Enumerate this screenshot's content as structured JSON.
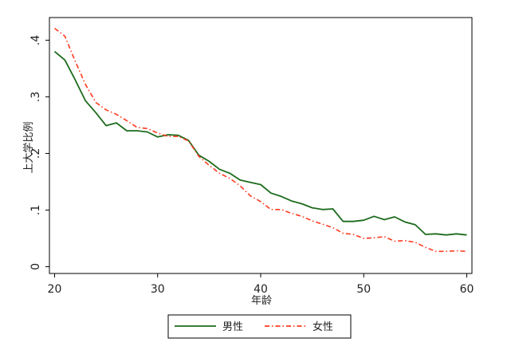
{
  "chart_data": {
    "type": "line",
    "title": "",
    "xlabel": "年龄",
    "ylabel": "上大学比例",
    "xlim": [
      19.5,
      60.5
    ],
    "ylim": [
      -0.012,
      0.44
    ],
    "x_ticks": [
      20,
      30,
      40,
      50,
      60
    ],
    "x_tick_labels": [
      "20",
      "30",
      "40",
      "50",
      "60"
    ],
    "y_ticks": [
      0,
      0.1,
      0.2,
      0.3,
      0.4
    ],
    "y_tick_labels": [
      "0",
      ".1",
      ".2",
      ".3",
      ".4"
    ],
    "y_tick_rotation": -90,
    "grid": false,
    "legend_position": "bottom",
    "x": [
      20,
      21,
      22,
      23,
      24,
      25,
      26,
      27,
      28,
      29,
      30,
      31,
      32,
      33,
      34,
      35,
      36,
      37,
      38,
      39,
      40,
      41,
      42,
      43,
      44,
      45,
      46,
      47,
      48,
      49,
      50,
      51,
      52,
      53,
      54,
      55,
      56,
      57,
      58,
      59,
      60
    ],
    "series": [
      {
        "name": "男性",
        "color": "#1d6b1d",
        "style": "solid",
        "values": [
          0.38,
          0.365,
          0.33,
          0.293,
          0.272,
          0.249,
          0.254,
          0.24,
          0.24,
          0.238,
          0.229,
          0.233,
          0.232,
          0.223,
          0.197,
          0.186,
          0.172,
          0.165,
          0.153,
          0.149,
          0.145,
          0.13,
          0.124,
          0.116,
          0.111,
          0.104,
          0.101,
          0.102,
          0.08,
          0.08,
          0.082,
          0.089,
          0.083,
          0.088,
          0.079,
          0.074,
          0.057,
          0.058,
          0.056,
          0.058,
          0.056
        ]
      },
      {
        "name": "女性",
        "color": "#ff3b1f",
        "style": "dash-dot",
        "values": [
          0.421,
          0.407,
          0.363,
          0.322,
          0.29,
          0.277,
          0.269,
          0.258,
          0.246,
          0.244,
          0.236,
          0.23,
          0.23,
          0.222,
          0.195,
          0.179,
          0.165,
          0.156,
          0.143,
          0.125,
          0.115,
          0.101,
          0.101,
          0.094,
          0.089,
          0.081,
          0.075,
          0.069,
          0.059,
          0.057,
          0.05,
          0.051,
          0.053,
          0.045,
          0.046,
          0.043,
          0.034,
          0.027,
          0.027,
          0.028,
          0.027
        ]
      }
    ]
  }
}
